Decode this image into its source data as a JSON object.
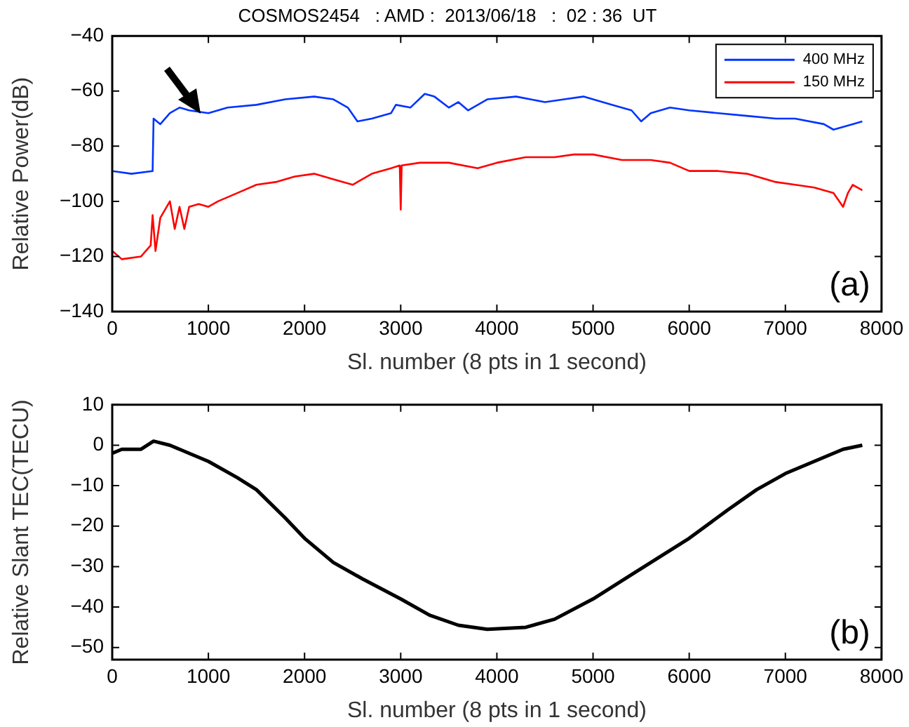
{
  "chart_data": [
    {
      "type": "line",
      "title": "COSMOS2454   : AMD :  2013/06/18   :  02 : 36  UT",
      "xlabel": "Sl. number (8 pts in 1 second)",
      "ylabel": "Relative Power(dB)",
      "annotations": [
        "(a)"
      ],
      "legend": "top right",
      "grid": false,
      "marker": "none",
      "xlim": [
        0,
        8000
      ],
      "xticks": [
        0,
        1000,
        2000,
        3000,
        4000,
        5000,
        6000,
        7000,
        8000
      ],
      "ylim": [
        -140,
        -40
      ],
      "yticks": [
        -140,
        -120,
        -100,
        -80,
        -60,
        -40
      ],
      "series": [
        {
          "name": "400 MHz",
          "color": "#0033ff",
          "x": [
            0,
            200,
            420,
            430,
            500,
            600,
            700,
            800,
            1000,
            1200,
            1500,
            1800,
            2100,
            2300,
            2450,
            2550,
            2700,
            2900,
            2950,
            3100,
            3250,
            3350,
            3500,
            3600,
            3700,
            3900,
            4200,
            4500,
            4700,
            4900,
            5200,
            5400,
            5500,
            5600,
            5800,
            6000,
            6300,
            6600,
            6900,
            7100,
            7400,
            7500,
            7700,
            7800
          ],
          "values": [
            -89,
            -90,
            -89,
            -70,
            -72,
            -68,
            -66,
            -67,
            -68,
            -66,
            -65,
            -63,
            -62,
            -63,
            -66,
            -71,
            -70,
            -68,
            -65,
            -66,
            -61,
            -62,
            -66,
            -64,
            -67,
            -63,
            -62,
            -64,
            -63,
            -62,
            -65,
            -67,
            -71,
            -68,
            -66,
            -67,
            -68,
            -69,
            -70,
            -70,
            -72,
            -74,
            -72,
            -71
          ]
        },
        {
          "name": "150 MHz",
          "color": "#ff0000",
          "x": [
            0,
            100,
            300,
            400,
            420,
            450,
            500,
            600,
            650,
            700,
            750,
            800,
            900,
            1000,
            1100,
            1300,
            1500,
            1700,
            1900,
            2100,
            2300,
            2500,
            2700,
            2900,
            2990,
            3000,
            3010,
            3200,
            3500,
            3800,
            4000,
            4300,
            4600,
            4800,
            5000,
            5300,
            5600,
            5800,
            6000,
            6300,
            6600,
            6900,
            7100,
            7300,
            7500,
            7600,
            7650,
            7700,
            7800
          ],
          "values": [
            -118,
            -121,
            -120,
            -116,
            -105,
            -118,
            -106,
            -100,
            -110,
            -102,
            -110,
            -102,
            -101,
            -102,
            -100,
            -97,
            -94,
            -93,
            -91,
            -90,
            -92,
            -94,
            -90,
            -88,
            -87,
            -103,
            -87,
            -86,
            -86,
            -88,
            -86,
            -84,
            -84,
            -83,
            -83,
            -85,
            -85,
            -86,
            -89,
            -89,
            -90,
            -93,
            -94,
            -95,
            -97,
            -102,
            -97,
            -94,
            -96
          ]
        }
      ]
    },
    {
      "type": "line",
      "xlabel": "Sl. number (8 pts in 1 second)",
      "ylabel": "Relative Slant TEC(TECU)",
      "annotations": [
        "(b)"
      ],
      "grid": false,
      "marker": "none",
      "xlim": [
        0,
        8000
      ],
      "xticks": [
        0,
        1000,
        2000,
        3000,
        4000,
        5000,
        6000,
        7000,
        8000
      ],
      "ylim": [
        -53,
        10
      ],
      "yticks": [
        -50,
        -40,
        -30,
        -20,
        -10,
        0,
        10
      ],
      "series": [
        {
          "color": "#000000",
          "x": [
            0,
            100,
            300,
            430,
            600,
            800,
            1000,
            1300,
            1500,
            1800,
            2000,
            2300,
            2600,
            3000,
            3300,
            3600,
            3900,
            4300,
            4600,
            5000,
            5400,
            5800,
            6000,
            6400,
            6700,
            7000,
            7300,
            7600,
            7800
          ],
          "values": [
            -2,
            -1,
            -1,
            1,
            0,
            -2,
            -4,
            -8,
            -11,
            -18,
            -23,
            -29,
            -33,
            -38,
            -42,
            -44.5,
            -45.5,
            -45,
            -43,
            -38,
            -32,
            -26,
            -23,
            -16,
            -11,
            -7,
            -4,
            -1,
            0
          ]
        }
      ]
    }
  ]
}
